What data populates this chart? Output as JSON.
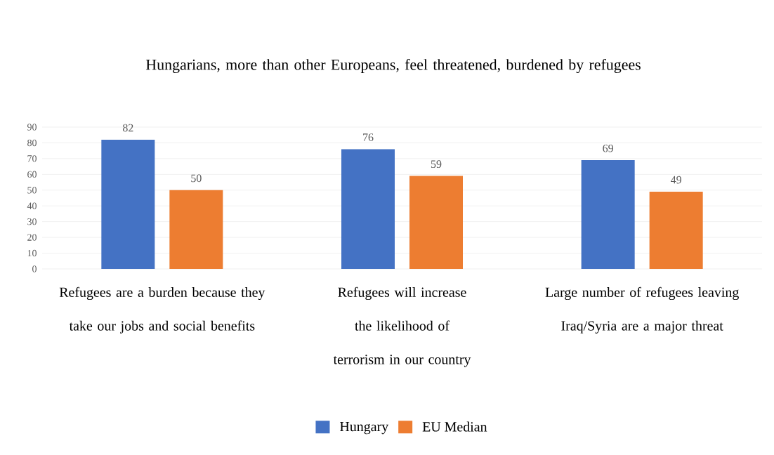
{
  "chart_data": {
    "type": "bar",
    "title": "Hungarians, more than other Europeans, feel threatened, burdened by refugees",
    "categories": [
      "Refugees are a burden because they take our jobs and social benefits",
      "Refugees will increase the likelihood of terrorism in our country",
      "Large number of refugees leaving Iraq/Syria are a major threat"
    ],
    "series": [
      {
        "name": "Hungary",
        "color": "#4472c4",
        "values": [
          82,
          76,
          69
        ]
      },
      {
        "name": "EU Median",
        "color": "#ed7d31",
        "values": [
          50,
          59,
          49
        ]
      }
    ],
    "ylim": [
      0,
      90
    ],
    "yticks": [
      0,
      10,
      20,
      30,
      40,
      50,
      60,
      70,
      80,
      90
    ],
    "grid": "y",
    "legend": "bottom",
    "data_labels": true
  }
}
